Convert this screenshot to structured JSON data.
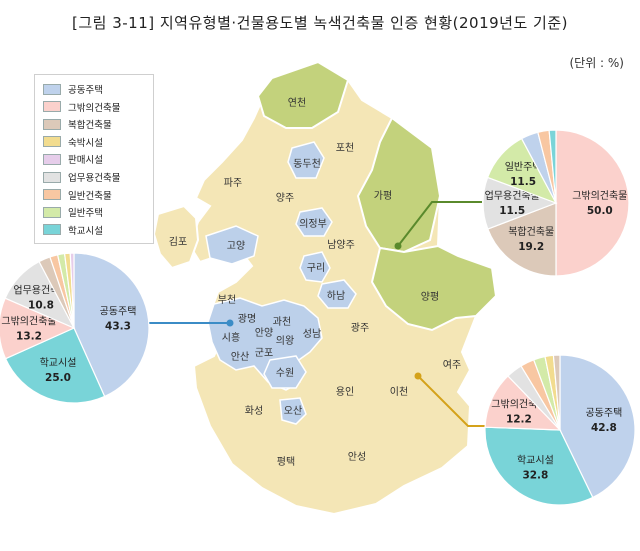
{
  "title": "[그림 3-11] 지역유형별·건물용도별 녹색건축물 인증 현황(2019년도 기준)",
  "unit_label": "(단위 : %)",
  "colors": {
    "map_default": "#f4e6b6",
    "map_city": "#bcd0ea",
    "map_rural": "#c3d27c",
    "connector_blue": "#3b8cc6",
    "connector_green": "#5a8a2c",
    "connector_gold": "#d4a21a"
  },
  "legend": [
    {
      "label": "공동주택",
      "color": "#bfd2ec"
    },
    {
      "label": "그밖의건축물",
      "color": "#fbd1cc"
    },
    {
      "label": "복합건축물",
      "color": "#dcc9b9"
    },
    {
      "label": "숙박시설",
      "color": "#f2dc8f"
    },
    {
      "label": "판매시설",
      "color": "#e6cdea"
    },
    {
      "label": "업무용건축물",
      "color": "#e2e2e2"
    },
    {
      "label": "일반건축물",
      "color": "#f8c7a2"
    },
    {
      "label": "일반주택",
      "color": "#d3eaa8"
    },
    {
      "label": "학교시설",
      "color": "#79d4d8"
    }
  ],
  "regions": {
    "yeoncheon": "연천",
    "pocheon": "포천",
    "dongducheon": "동두천",
    "paju": "파주",
    "yangju": "양주",
    "gapyeong": "가평",
    "uijeongbu": "의정부",
    "gimpo": "김포",
    "goyang": "고양",
    "namyangju": "남양주",
    "guri": "구리",
    "hanam": "하남",
    "yangpyeong": "양평",
    "bucheon": "부천",
    "gwangmyeong": "광명",
    "gwacheon": "과천",
    "siheung": "시흥",
    "anyang": "안양",
    "seongnam": "성남",
    "uiwang": "의왕",
    "gwangju": "광주",
    "gunpo": "군포",
    "ansan": "안산",
    "yeoju": "여주",
    "suwon": "수원",
    "yongin": "용인",
    "icheon": "이천",
    "hwaseong": "화성",
    "osan": "오산",
    "pyeongtaek": "평택",
    "anseong": "안성"
  },
  "chart_data": [
    {
      "type": "pie",
      "group": "blue",
      "slices": [
        {
          "label": "공동주택",
          "value": 43.3,
          "color": "#bfd2ec"
        },
        {
          "label": "학교시설",
          "value": 25.0,
          "color": "#79d4d8"
        },
        {
          "label": "그밖의건축물",
          "value": 13.2,
          "color": "#fbd1cc"
        },
        {
          "label": "업무용건축물",
          "value": 10.8,
          "color": "#e2e2e2"
        },
        {
          "label": "",
          "value": 2.5,
          "color": "#dcc9b9"
        },
        {
          "label": "",
          "value": 1.7,
          "color": "#f8c7a2"
        },
        {
          "label": "",
          "value": 1.5,
          "color": "#d3eaa8"
        },
        {
          "label": "",
          "value": 1.2,
          "color": "#f2dc8f"
        },
        {
          "label": "",
          "value": 0.8,
          "color": "#e6cdea"
        }
      ]
    },
    {
      "type": "pie",
      "group": "green",
      "slices": [
        {
          "label": "그밖의건축물",
          "value": 50.0,
          "color": "#fbd1cc"
        },
        {
          "label": "복합건축물",
          "value": 19.2,
          "color": "#dcc9b9"
        },
        {
          "label": "업무용건축물",
          "value": 11.5,
          "color": "#e2e2e2"
        },
        {
          "label": "일반주택",
          "value": 11.5,
          "color": "#d3eaa8"
        },
        {
          "label": "",
          "value": 3.8,
          "color": "#bfd2ec"
        },
        {
          "label": "",
          "value": 2.5,
          "color": "#f8c7a2"
        },
        {
          "label": "",
          "value": 1.5,
          "color": "#79d4d8"
        }
      ]
    },
    {
      "type": "pie",
      "group": "gold",
      "slices": [
        {
          "label": "공동주택",
          "value": 42.8,
          "color": "#bfd2ec"
        },
        {
          "label": "학교시설",
          "value": 32.8,
          "color": "#79d4d8"
        },
        {
          "label": "그밖의건축물",
          "value": 12.2,
          "color": "#fbd1cc"
        },
        {
          "label": "",
          "value": 3.5,
          "color": "#e2e2e2"
        },
        {
          "label": "",
          "value": 3.0,
          "color": "#f8c7a2"
        },
        {
          "label": "",
          "value": 2.5,
          "color": "#d3eaa8"
        },
        {
          "label": "",
          "value": 1.8,
          "color": "#f2dc8f"
        },
        {
          "label": "",
          "value": 1.4,
          "color": "#dcc9b9"
        }
      ]
    }
  ]
}
